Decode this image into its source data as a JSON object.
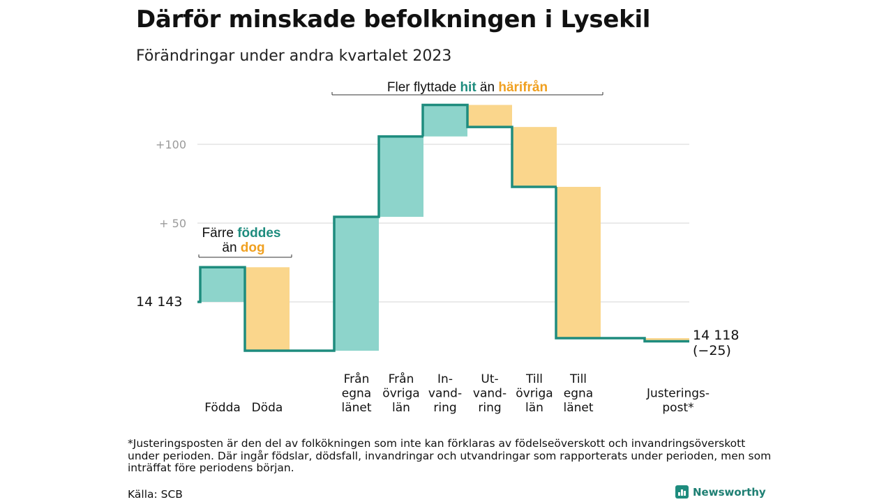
{
  "title": "Därför minskade befolkningen i Lysekil",
  "subtitle": "Förändringar under andra kvartalet 2023",
  "colors": {
    "increase": "#8dd4cb",
    "decrease": "#fad68c",
    "line": "#1e8c7e",
    "hit": "#1e8c7e",
    "harifran": "#f0a020",
    "grid": "#dddddd"
  },
  "annotations": {
    "migration": {
      "pre": "Fler flyttade ",
      "hit": "hit",
      "mid": " än ",
      "harifran": "härifrån"
    },
    "births": {
      "line1_pre": "Färre ",
      "line1_hl": "föddes",
      "line2_pre": "än ",
      "line2_hl": "dog"
    }
  },
  "chart_data": {
    "type": "waterfall",
    "start_value": 14143,
    "end_value": 14118,
    "start_label": "14  143",
    "end_label": "14 118",
    "end_change_label": "(−25)",
    "y_ticks": [
      {
        "value": 14143,
        "label": ""
      },
      {
        "value": 14193,
        "label": "+  50"
      },
      {
        "value": 14243,
        "label": "+100"
      }
    ],
    "categories": [
      {
        "label": [
          "Födda"
        ],
        "value": 22
      },
      {
        "label": [
          "Döda"
        ],
        "value": -53
      },
      {
        "label": [
          "Från",
          "egna",
          "länet"
        ],
        "value": 85
      },
      {
        "label": [
          "Från",
          "övriga",
          "län"
        ],
        "value": 51
      },
      {
        "label": [
          "In-",
          "vand-",
          "ring"
        ],
        "value": 20
      },
      {
        "label": [
          "Ut-",
          "vand-",
          "ring"
        ],
        "value": -14
      },
      {
        "label": [
          "Till",
          "övriga",
          "län"
        ],
        "value": -38
      },
      {
        "label": [
          "Till",
          "egna",
          "länet"
        ],
        "value": -96
      },
      {
        "label": [
          "Justerings-",
          "post*"
        ],
        "value": -2
      }
    ]
  },
  "footnote": "*Justeringsposten är den del av folkökningen som inte kan förklaras av födelseöverskott och invandringsöverskott under perioden. Där ingår födslar, dödsfall, invandringar och utvandringar som rapporterats under perioden, men som inträffat före periodens början.",
  "source": "Källa: SCB",
  "brand": "Newsworthy"
}
